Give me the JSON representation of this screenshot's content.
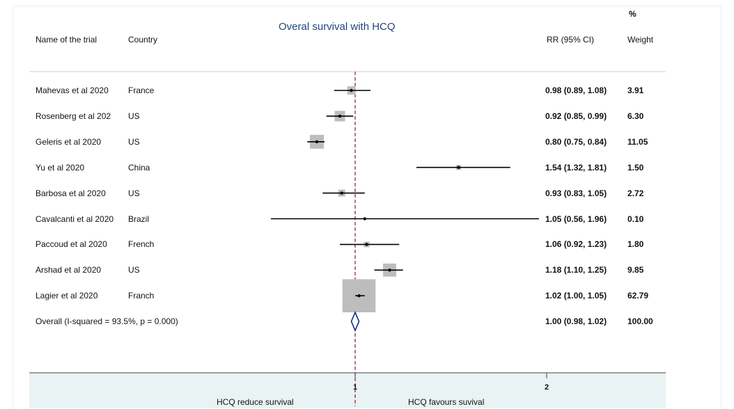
{
  "chart_data": {
    "type": "forest",
    "title": "Overal survival with HCQ",
    "columns": {
      "study": "Name of the trial",
      "country": "Country",
      "effect": "RR (95% CI)",
      "weight_top": "%",
      "weight": "Weight"
    },
    "studies": [
      {
        "name": "Mahevas et al 2020",
        "country": "France",
        "rr": 0.98,
        "ci_low": 0.89,
        "ci_high": 1.08,
        "weight": 3.91,
        "label": "0.98 (0.89, 1.08)",
        "weight_label": "3.91"
      },
      {
        "name": "Rosenberg et al 202",
        "country": "US",
        "rr": 0.92,
        "ci_low": 0.85,
        "ci_high": 0.99,
        "weight": 6.3,
        "label": "0.92 (0.85, 0.99)",
        "weight_label": "6.30"
      },
      {
        "name": "Geleris et al 2020",
        "country": "US",
        "rr": 0.8,
        "ci_low": 0.75,
        "ci_high": 0.84,
        "weight": 11.05,
        "label": "0.80 (0.75, 0.84)",
        "weight_label": "11.05"
      },
      {
        "name": "Yu et al 2020",
        "country": "China",
        "rr": 1.54,
        "ci_low": 1.32,
        "ci_high": 1.81,
        "weight": 1.5,
        "label": "1.54 (1.32, 1.81)",
        "weight_label": "1.50"
      },
      {
        "name": "Barbosa et al 2020",
        "country": "US",
        "rr": 0.93,
        "ci_low": 0.83,
        "ci_high": 1.05,
        "weight": 2.72,
        "label": "0.93 (0.83, 1.05)",
        "weight_label": "2.72"
      },
      {
        "name": "Cavalcanti et al 2020",
        "country": "Brazil",
        "rr": 1.05,
        "ci_low": 0.56,
        "ci_high": 1.96,
        "weight": 0.1,
        "label": "1.05 (0.56, 1.96)",
        "weight_label": "0.10"
      },
      {
        "name": "Paccoud et al 2020",
        "country": "French",
        "rr": 1.06,
        "ci_low": 0.92,
        "ci_high": 1.23,
        "weight": 1.8,
        "label": "1.06 (0.92, 1.23)",
        "weight_label": "1.80"
      },
      {
        "name": "Arshad et al 2020",
        "country": "US",
        "rr": 1.18,
        "ci_low": 1.1,
        "ci_high": 1.25,
        "weight": 9.85,
        "label": "1.18 (1.10, 1.25)",
        "weight_label": "9.85"
      },
      {
        "name": "Lagier et al 2020",
        "country": "Franch",
        "rr": 1.02,
        "ci_low": 1.0,
        "ci_high": 1.05,
        "weight": 62.79,
        "label": "1.02 (1.00, 1.05)",
        "weight_label": "62.79"
      }
    ],
    "overall": {
      "name": "Overall  (I-squared = 93.5%, p = 0.000)",
      "rr": 1.0,
      "ci_low": 0.98,
      "ci_high": 1.02,
      "weight": 100.0,
      "label": "1.00 (0.98, 1.02)",
      "weight_label": "100.00"
    },
    "x_ticks": [
      {
        "value": 1,
        "label": "1"
      },
      {
        "value": 2,
        "label": "2"
      }
    ],
    "favours_left": "HCQ reduce survival",
    "favours_right": "HCQ favours suvival",
    "colors": {
      "title": "#23457a",
      "box": "#bdbdbd",
      "ci_line": "#000000",
      "null_line": "#8b1a1a",
      "diamond": "#1e2a8a",
      "band": "#e9f3f3"
    }
  }
}
